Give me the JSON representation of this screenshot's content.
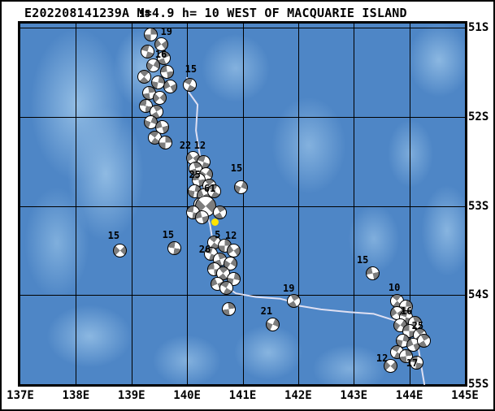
{
  "title": "E202208141239A M=4.9 h= 10 WEST OF MACQUARIE ISLAND",
  "colors": {
    "ocean": "#4e86c6",
    "ocean_light": "#8ab6e2",
    "ball_fill": "#7d7d7d",
    "ball_bg": "#ffffff",
    "plate_boundary": "#dfe0f2",
    "epicenter": "#ffe400",
    "grid": "#000000",
    "frame": "#000000"
  },
  "axes": {
    "lon_ticks": [
      [
        137,
        "137E"
      ],
      [
        138,
        "138E"
      ],
      [
        139,
        "139E"
      ],
      [
        140,
        "140E"
      ],
      [
        141,
        "141E"
      ],
      [
        142,
        "142E"
      ],
      [
        143,
        "143E"
      ],
      [
        144,
        "144E"
      ],
      [
        145,
        "145E"
      ]
    ],
    "lat_ticks": [
      [
        51,
        "51S"
      ],
      [
        52,
        "52S"
      ],
      [
        53,
        "53S"
      ],
      [
        54,
        "54S"
      ],
      [
        55,
        "55S"
      ]
    ]
  },
  "map": {
    "lon_range": [
      137,
      145
    ],
    "lat_range": [
      50.95,
      55.0
    ],
    "gridline_lons": [
      138,
      139,
      140,
      141,
      142,
      143,
      144
    ],
    "gridline_lats": [
      51,
      52,
      53,
      54
    ],
    "epicenter": {
      "lon": 140.51,
      "lat": 53.18
    },
    "beachballs": [
      [
        139.34,
        51.06
      ],
      [
        139.52,
        51.17
      ],
      [
        139.27,
        51.26
      ],
      [
        139.56,
        51.33
      ],
      [
        139.38,
        51.41
      ],
      [
        139.63,
        51.48
      ],
      [
        139.22,
        51.54
      ],
      [
        139.46,
        51.6
      ],
      [
        139.69,
        51.65
      ],
      [
        140.04,
        51.63
      ],
      [
        139.31,
        51.72
      ],
      [
        139.5,
        51.78
      ],
      [
        139.24,
        51.87
      ],
      [
        139.44,
        51.93
      ],
      [
        139.34,
        52.05
      ],
      [
        139.54,
        52.1
      ],
      [
        139.41,
        52.22
      ],
      [
        139.59,
        52.28
      ],
      [
        140.1,
        52.45
      ],
      [
        140.28,
        52.5
      ],
      [
        140.14,
        52.57
      ],
      [
        140.33,
        52.63
      ],
      [
        140.19,
        52.7
      ],
      [
        140.39,
        52.76
      ],
      [
        140.12,
        52.82
      ],
      [
        140.29,
        52.87
      ],
      [
        140.48,
        52.82
      ],
      [
        140.22,
        52.97
      ],
      [
        140.32,
        52.99,
        24
      ],
      [
        140.09,
        53.06
      ],
      [
        140.58,
        53.06
      ],
      [
        140.95,
        52.78
      ],
      [
        140.25,
        53.12
      ],
      [
        140.47,
        53.4
      ],
      [
        140.66,
        53.44
      ],
      [
        140.83,
        53.49
      ],
      [
        140.41,
        53.53
      ],
      [
        140.58,
        53.59
      ],
      [
        140.76,
        53.64
      ],
      [
        140.47,
        53.7
      ],
      [
        140.64,
        53.75
      ],
      [
        140.82,
        53.81
      ],
      [
        140.53,
        53.86
      ],
      [
        140.7,
        53.91
      ],
      [
        140.74,
        54.15
      ],
      [
        138.77,
        53.49
      ],
      [
        139.75,
        53.46
      ],
      [
        141.91,
        54.06
      ],
      [
        141.52,
        54.32
      ],
      [
        143.32,
        53.75
      ],
      [
        143.77,
        54.06
      ],
      [
        143.92,
        54.12
      ],
      [
        143.76,
        54.19
      ],
      [
        143.93,
        54.24
      ],
      [
        144.08,
        54.3
      ],
      [
        143.82,
        54.33
      ],
      [
        143.99,
        54.39
      ],
      [
        144.17,
        54.44
      ],
      [
        143.87,
        54.5
      ],
      [
        144.05,
        54.55
      ],
      [
        143.76,
        54.63
      ],
      [
        143.93,
        54.68
      ],
      [
        143.64,
        54.79
      ],
      [
        144.11,
        54.75
      ],
      [
        144.25,
        54.5
      ]
    ],
    "depth_labels": [
      [
        139.24,
        50.84,
        "15"
      ],
      [
        139.63,
        51.04,
        "19"
      ],
      [
        139.53,
        51.3,
        "16"
      ],
      [
        140.07,
        51.46,
        "15"
      ],
      [
        139.97,
        52.32,
        "22"
      ],
      [
        140.23,
        52.32,
        "12"
      ],
      [
        140.89,
        52.57,
        "15"
      ],
      [
        140.14,
        52.65,
        "25"
      ],
      [
        140.41,
        52.8,
        "61"
      ],
      [
        138.68,
        53.33,
        "15"
      ],
      [
        139.66,
        53.32,
        "15"
      ],
      [
        140.55,
        53.32,
        "5"
      ],
      [
        140.79,
        53.33,
        "12"
      ],
      [
        140.32,
        53.49,
        "26"
      ],
      [
        141.83,
        53.92,
        "19"
      ],
      [
        141.43,
        54.18,
        "21"
      ],
      [
        143.16,
        53.6,
        "15"
      ],
      [
        143.73,
        53.91,
        "10"
      ],
      [
        143.95,
        54.18,
        "16"
      ],
      [
        144.15,
        54.34,
        "25"
      ],
      [
        143.51,
        54.71,
        "12"
      ],
      [
        144.05,
        54.76,
        "17"
      ]
    ],
    "plate_boundary": [
      [
        140.0,
        51.56
      ],
      [
        140.03,
        51.72
      ],
      [
        140.19,
        51.86
      ],
      [
        140.16,
        52.15
      ],
      [
        140.23,
        52.43
      ],
      [
        140.28,
        52.75
      ],
      [
        140.32,
        53.02
      ],
      [
        140.41,
        53.2
      ],
      [
        140.47,
        53.43
      ],
      [
        140.55,
        53.7
      ],
      [
        140.66,
        53.89
      ],
      [
        140.88,
        53.98
      ],
      [
        141.24,
        54.02
      ],
      [
        141.68,
        54.04
      ],
      [
        141.86,
        54.07
      ],
      [
        141.93,
        54.01
      ],
      [
        142.02,
        54.12
      ],
      [
        142.41,
        54.16
      ],
      [
        142.92,
        54.19
      ],
      [
        143.36,
        54.21
      ],
      [
        144.02,
        54.34
      ],
      [
        144.17,
        54.62
      ],
      [
        144.24,
        54.89
      ],
      [
        144.27,
        55.0
      ]
    ]
  }
}
